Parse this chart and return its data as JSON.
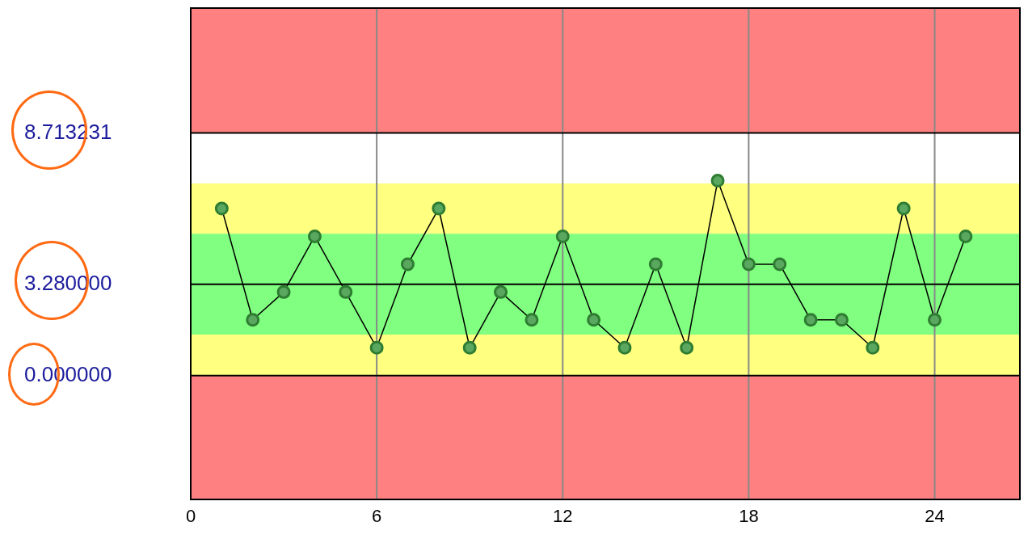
{
  "chart_data": {
    "type": "line",
    "x": [
      1,
      2,
      3,
      4,
      5,
      6,
      7,
      8,
      9,
      10,
      11,
      12,
      13,
      14,
      15,
      16,
      17,
      18,
      19,
      20,
      21,
      22,
      23,
      24,
      25
    ],
    "values": [
      6,
      2,
      3,
      5,
      3,
      1,
      4,
      6,
      1,
      3,
      2,
      5,
      2,
      1,
      4,
      1,
      7,
      4,
      4,
      2,
      2,
      1,
      6,
      2,
      5
    ],
    "color": "#2e7d32",
    "marker": "circle",
    "line_style": "solid",
    "xlim": [
      0,
      26.75
    ],
    "xticks": [
      0,
      6,
      12,
      18,
      24
    ],
    "ylim": [
      -4.45,
      13.2
    ],
    "yticks": [
      {
        "value": 8.713231,
        "label": "8.713231"
      },
      {
        "value": 3.28,
        "label": "3.280000"
      },
      {
        "value": 0,
        "label": "0.000000"
      }
    ],
    "grid": "x",
    "bands": [
      {
        "axis": "y",
        "from": 8.713231,
        "to": 13.2,
        "color": "#ff8080"
      },
      {
        "axis": "y",
        "from": 5.091,
        "to": 6.902,
        "color": "#ffff80"
      },
      {
        "axis": "y",
        "from": 1.469,
        "to": 5.091,
        "color": "#80ff80"
      },
      {
        "axis": "y",
        "from": 0,
        "to": 1.469,
        "color": "#ffff80"
      },
      {
        "axis": "y",
        "from": -4.45,
        "to": 0,
        "color": "#ff8080"
      }
    ],
    "ref_lines": [
      {
        "axis": "y",
        "value": 8.713231,
        "color": "#000000"
      },
      {
        "axis": "y",
        "value": 3.28,
        "color": "#000000"
      },
      {
        "axis": "y",
        "value": 0,
        "color": "#000000"
      }
    ]
  }
}
